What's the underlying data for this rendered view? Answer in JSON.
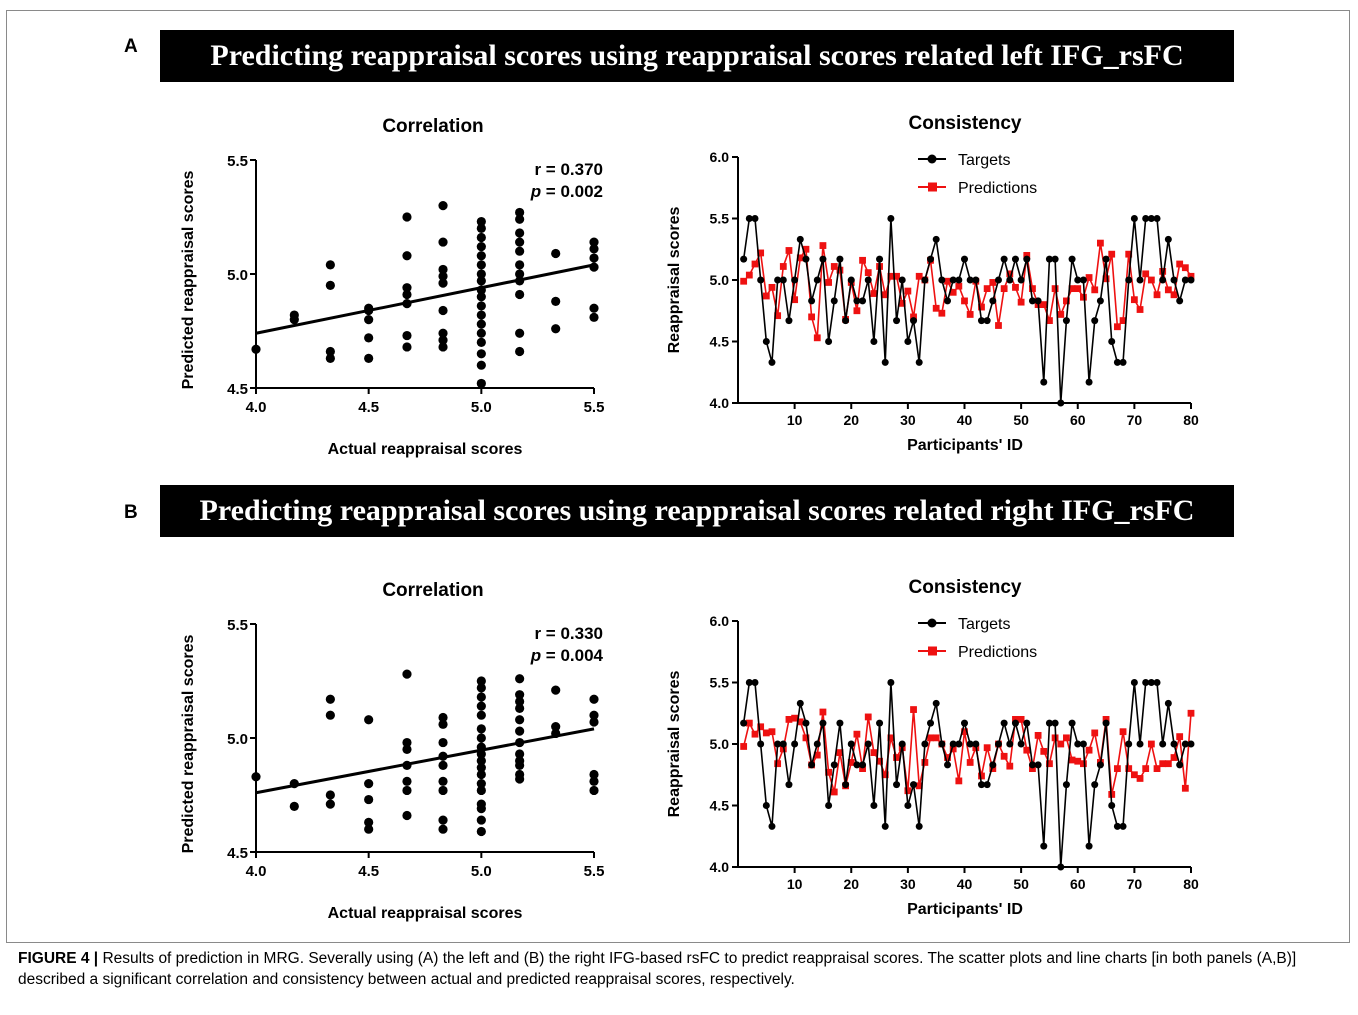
{
  "caption": {
    "label": "FIGURE 4 |",
    "text": " Results of prediction in MRG. Severally using (A) the left and (B) the right IFG-based rsFC to predict reappraisal scores. The scatter plots and line charts [in both panels (A,B)] described a significant correlation and consistency between actual and predicted reappraisal scores, respectively."
  },
  "panels": [
    {
      "letter": "A",
      "banner": "Predicting reappraisal scores using reappraisal scores related left IFG_rsFC",
      "correlation": {
        "title": "Correlation",
        "r_label": "r = 0.370",
        "p_name": "p",
        "p_value": " = 0.002"
      },
      "consistency": {
        "title": "Consistency"
      }
    },
    {
      "letter": "B",
      "banner": "Predicting reappraisal scores using reappraisal scores related right IFG_rsFC",
      "correlation": {
        "title": "Correlation",
        "r_label": "r = 0.330",
        "p_name": "p",
        "p_value": " = 0.004"
      },
      "consistency": {
        "title": "Consistency"
      }
    }
  ],
  "chart_data": [
    {
      "type": "scatter",
      "title": "Correlation",
      "xlabel": "Actual reappraisal scores",
      "ylabel": "Predicted reappraisal scores",
      "xlim": [
        4.0,
        5.5
      ],
      "ylim": [
        4.5,
        5.5
      ],
      "xticks": [
        "4.0",
        "4.5",
        "5.0",
        "5.5"
      ],
      "yticks": [
        "4.5",
        "5.0",
        "5.5"
      ],
      "annotation": {
        "r": "0.370",
        "p": "0.002"
      },
      "regression_line": [
        [
          4.0,
          4.74
        ],
        [
          5.5,
          5.04
        ]
      ],
      "points": [
        [
          4.0,
          4.67
        ],
        [
          4.17,
          4.82
        ],
        [
          4.17,
          4.8
        ],
        [
          4.33,
          5.04
        ],
        [
          4.33,
          4.95
        ],
        [
          4.33,
          4.66
        ],
        [
          4.33,
          4.63
        ],
        [
          4.5,
          4.85
        ],
        [
          4.5,
          4.84
        ],
        [
          4.5,
          4.8
        ],
        [
          4.5,
          4.72
        ],
        [
          4.5,
          4.63
        ],
        [
          4.67,
          5.25
        ],
        [
          4.67,
          5.08
        ],
        [
          4.67,
          4.94
        ],
        [
          4.67,
          4.91
        ],
        [
          4.67,
          4.87
        ],
        [
          4.67,
          4.73
        ],
        [
          4.67,
          4.68
        ],
        [
          4.83,
          5.3
        ],
        [
          4.83,
          5.14
        ],
        [
          4.83,
          5.02
        ],
        [
          4.83,
          4.99
        ],
        [
          4.83,
          4.96
        ],
        [
          4.83,
          4.84
        ],
        [
          4.83,
          4.74
        ],
        [
          4.83,
          4.71
        ],
        [
          4.83,
          4.68
        ],
        [
          5.0,
          5.23
        ],
        [
          5.0,
          5.2
        ],
        [
          5.0,
          5.16
        ],
        [
          5.0,
          5.12
        ],
        [
          5.0,
          5.08
        ],
        [
          5.0,
          5.04
        ],
        [
          5.0,
          5.0
        ],
        [
          5.0,
          4.97
        ],
        [
          5.0,
          4.93
        ],
        [
          5.0,
          4.9
        ],
        [
          5.0,
          4.86
        ],
        [
          5.0,
          4.82
        ],
        [
          5.0,
          4.78
        ],
        [
          5.0,
          4.74
        ],
        [
          5.0,
          4.7
        ],
        [
          5.0,
          4.65
        ],
        [
          5.0,
          4.6
        ],
        [
          5.0,
          4.52
        ],
        [
          5.17,
          5.27
        ],
        [
          5.17,
          5.24
        ],
        [
          5.17,
          5.18
        ],
        [
          5.17,
          5.14
        ],
        [
          5.17,
          5.1
        ],
        [
          5.17,
          5.04
        ],
        [
          5.17,
          5.0
        ],
        [
          5.17,
          4.97
        ],
        [
          5.17,
          4.91
        ],
        [
          5.17,
          4.74
        ],
        [
          5.17,
          4.66
        ],
        [
          5.33,
          5.09
        ],
        [
          5.33,
          4.88
        ],
        [
          5.33,
          4.76
        ],
        [
          5.5,
          5.14
        ],
        [
          5.5,
          5.11
        ],
        [
          5.5,
          5.07
        ],
        [
          5.5,
          5.03
        ],
        [
          5.5,
          4.85
        ],
        [
          5.5,
          4.81
        ]
      ]
    },
    {
      "type": "line",
      "title": "Consistency",
      "xlabel": "Participants' ID",
      "ylabel": "Reappraisal scores",
      "xlim": [
        0,
        80
      ],
      "ylim": [
        4.0,
        6.0
      ],
      "xticks": [
        "10",
        "20",
        "30",
        "40",
        "50",
        "60",
        "70",
        "80"
      ],
      "yticks": [
        "4.0",
        "4.5",
        "5.0",
        "5.5",
        "6.0"
      ],
      "legend": {
        "position": "top-left"
      },
      "series": [
        {
          "name": "Targets",
          "color": "#000000",
          "marker": "circle",
          "values": [
            5.17,
            5.5,
            5.5,
            5.0,
            4.5,
            4.33,
            5.0,
            5.0,
            4.67,
            5.0,
            5.33,
            5.17,
            4.83,
            5.0,
            5.17,
            4.5,
            4.83,
            5.17,
            4.67,
            5.0,
            4.83,
            4.83,
            5.0,
            4.5,
            5.17,
            4.33,
            5.5,
            4.67,
            5.0,
            4.5,
            4.67,
            4.33,
            5.0,
            5.17,
            5.33,
            5.0,
            4.83,
            5.0,
            5.0,
            5.17,
            5.0,
            5.0,
            4.67,
            4.67,
            4.83,
            5.0,
            5.17,
            5.0,
            5.17,
            5.0,
            5.17,
            4.83,
            4.83,
            4.17,
            5.17,
            5.17,
            4.0,
            4.67,
            5.17,
            5.0,
            5.0,
            4.17,
            4.67,
            4.83,
            5.17,
            4.5,
            4.33,
            4.33,
            5.0,
            5.5,
            5.0,
            5.5,
            5.5,
            5.5,
            5.0,
            5.33,
            5.0,
            4.83,
            5.0,
            5.0
          ]
        },
        {
          "name": "Predictions",
          "color": "#ee1111",
          "marker": "square",
          "values": [
            4.99,
            5.04,
            5.13,
            5.22,
            4.87,
            4.94,
            4.71,
            5.11,
            5.24,
            4.84,
            5.18,
            5.25,
            4.7,
            4.53,
            5.28,
            4.98,
            5.11,
            5.08,
            4.68,
            4.98,
            4.75,
            5.16,
            5.06,
            4.89,
            5.11,
            4.88,
            5.03,
            5.03,
            4.81,
            4.91,
            4.7,
            5.03,
            5.0,
            5.16,
            4.77,
            4.73,
            4.99,
            4.9,
            4.95,
            4.83,
            4.72,
            4.99,
            4.78,
            4.93,
            4.98,
            4.63,
            4.93,
            5.05,
            4.94,
            4.82,
            5.2,
            4.93,
            4.8,
            4.8,
            4.67,
            4.93,
            4.72,
            4.83,
            4.93,
            4.93,
            4.86,
            5.02,
            4.92,
            5.3,
            5.01,
            5.21,
            4.62,
            4.67,
            5.21,
            4.84,
            4.76,
            5.05,
            5.0,
            4.88,
            5.07,
            4.92,
            4.88,
            5.13,
            5.1,
            5.03
          ]
        }
      ]
    },
    {
      "type": "scatter",
      "title": "Correlation",
      "xlabel": "Actual reappraisal scores",
      "ylabel": "Predicted reappraisal scores",
      "xlim": [
        4.0,
        5.5
      ],
      "ylim": [
        4.5,
        5.5
      ],
      "xticks": [
        "4.0",
        "4.5",
        "5.0",
        "5.5"
      ],
      "yticks": [
        "4.5",
        "5.0",
        "5.5"
      ],
      "annotation": {
        "r": "0.330",
        "p": "0.004"
      },
      "regression_line": [
        [
          4.0,
          4.76
        ],
        [
          5.5,
          5.04
        ]
      ],
      "points": [
        [
          4.0,
          4.83
        ],
        [
          4.17,
          4.8
        ],
        [
          4.17,
          4.7
        ],
        [
          4.33,
          5.17
        ],
        [
          4.33,
          5.1
        ],
        [
          4.33,
          4.75
        ],
        [
          4.33,
          4.71
        ],
        [
          4.5,
          5.08
        ],
        [
          4.5,
          4.8
        ],
        [
          4.5,
          4.73
        ],
        [
          4.5,
          4.63
        ],
        [
          4.5,
          4.6
        ],
        [
          4.67,
          5.28
        ],
        [
          4.67,
          4.98
        ],
        [
          4.67,
          4.95
        ],
        [
          4.67,
          4.88
        ],
        [
          4.67,
          4.81
        ],
        [
          4.67,
          4.77
        ],
        [
          4.67,
          4.66
        ],
        [
          4.83,
          5.09
        ],
        [
          4.83,
          5.06
        ],
        [
          4.83,
          4.98
        ],
        [
          4.83,
          4.92
        ],
        [
          4.83,
          4.88
        ],
        [
          4.83,
          4.81
        ],
        [
          4.83,
          4.77
        ],
        [
          4.83,
          4.64
        ],
        [
          4.83,
          4.6
        ],
        [
          5.0,
          5.25
        ],
        [
          5.0,
          5.22
        ],
        [
          5.0,
          5.18
        ],
        [
          5.0,
          5.14
        ],
        [
          5.0,
          5.1
        ],
        [
          5.0,
          5.04
        ],
        [
          5.0,
          5.0
        ],
        [
          5.0,
          4.96
        ],
        [
          5.0,
          4.93
        ],
        [
          5.0,
          4.9
        ],
        [
          5.0,
          4.87
        ],
        [
          5.0,
          4.84
        ],
        [
          5.0,
          4.8
        ],
        [
          5.0,
          4.77
        ],
        [
          5.0,
          4.71
        ],
        [
          5.0,
          4.69
        ],
        [
          5.0,
          4.64
        ],
        [
          5.0,
          4.59
        ],
        [
          5.17,
          5.26
        ],
        [
          5.17,
          5.19
        ],
        [
          5.17,
          5.16
        ],
        [
          5.17,
          5.13
        ],
        [
          5.17,
          5.08
        ],
        [
          5.17,
          5.03
        ],
        [
          5.17,
          4.98
        ],
        [
          5.17,
          4.93
        ],
        [
          5.17,
          4.9
        ],
        [
          5.17,
          4.88
        ],
        [
          5.17,
          4.84
        ],
        [
          5.17,
          4.82
        ],
        [
          5.33,
          5.21
        ],
        [
          5.33,
          5.05
        ],
        [
          5.33,
          5.02
        ],
        [
          5.5,
          5.17
        ],
        [
          5.5,
          5.1
        ],
        [
          5.5,
          5.07
        ],
        [
          5.5,
          4.84
        ],
        [
          5.5,
          4.81
        ],
        [
          5.5,
          4.77
        ]
      ]
    },
    {
      "type": "line",
      "title": "Consistency",
      "xlabel": "Participants' ID",
      "ylabel": "Reappraisal scores",
      "xlim": [
        0,
        80
      ],
      "ylim": [
        4.0,
        6.0
      ],
      "xticks": [
        "10",
        "20",
        "30",
        "40",
        "50",
        "60",
        "70",
        "80"
      ],
      "yticks": [
        "4.0",
        "4.5",
        "5.0",
        "5.5",
        "6.0"
      ],
      "legend": {
        "position": "top-left"
      },
      "series": [
        {
          "name": "Targets",
          "color": "#000000",
          "marker": "circle",
          "values": [
            5.17,
            5.5,
            5.5,
            5.0,
            4.5,
            4.33,
            5.0,
            5.0,
            4.67,
            5.0,
            5.33,
            5.17,
            4.83,
            5.0,
            5.17,
            4.5,
            4.83,
            5.17,
            4.67,
            5.0,
            4.83,
            4.83,
            5.0,
            4.5,
            5.17,
            4.33,
            5.5,
            4.67,
            5.0,
            4.5,
            4.67,
            4.33,
            5.0,
            5.17,
            5.33,
            5.0,
            4.83,
            5.0,
            5.0,
            5.17,
            5.0,
            5.0,
            4.67,
            4.67,
            4.83,
            5.0,
            5.17,
            5.0,
            5.17,
            5.0,
            5.17,
            4.83,
            4.83,
            4.17,
            5.17,
            5.17,
            4.0,
            4.67,
            5.17,
            5.0,
            5.0,
            4.17,
            4.67,
            4.83,
            5.17,
            4.5,
            4.33,
            4.33,
            5.0,
            5.5,
            5.0,
            5.5,
            5.5,
            5.5,
            5.0,
            5.33,
            5.0,
            4.83,
            5.0,
            5.0
          ]
        },
        {
          "name": "Predictions",
          "color": "#ee1111",
          "marker": "square",
          "values": [
            4.98,
            5.17,
            5.08,
            5.14,
            5.09,
            5.1,
            4.84,
            4.96,
            5.2,
            5.21,
            5.18,
            5.05,
            4.83,
            4.91,
            5.26,
            4.77,
            4.61,
            4.93,
            4.66,
            4.85,
            5.08,
            4.8,
            5.22,
            4.93,
            4.86,
            4.75,
            5.05,
            4.89,
            4.97,
            4.62,
            5.28,
            4.66,
            4.85,
            5.05,
            5.05,
            5.0,
            4.89,
            4.96,
            4.7,
            5.1,
            4.85,
            4.97,
            4.74,
            4.97,
            4.8,
            5.0,
            4.9,
            4.82,
            5.2,
            5.2,
            4.95,
            4.8,
            5.07,
            4.94,
            4.84,
            5.05,
            5.0,
            5.05,
            4.87,
            4.86,
            4.84,
            4.95,
            5.09,
            4.85,
            5.2,
            4.59,
            4.8,
            5.1,
            4.8,
            4.75,
            4.72,
            4.8,
            5.0,
            4.8,
            4.84,
            4.84,
            4.89,
            5.06,
            4.64,
            5.25
          ]
        }
      ]
    }
  ]
}
